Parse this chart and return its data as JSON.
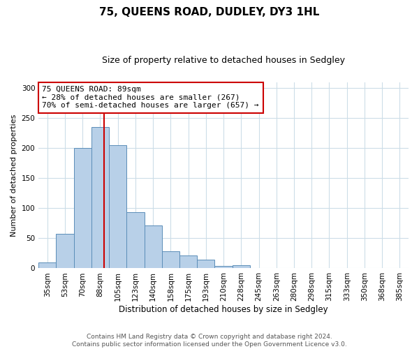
{
  "title": "75, QUEENS ROAD, DUDLEY, DY3 1HL",
  "subtitle": "Size of property relative to detached houses in Sedgley",
  "xlabel": "Distribution of detached houses by size in Sedgley",
  "ylabel": "Number of detached properties",
  "categories": [
    "35sqm",
    "53sqm",
    "70sqm",
    "88sqm",
    "105sqm",
    "123sqm",
    "140sqm",
    "158sqm",
    "175sqm",
    "193sqm",
    "210sqm",
    "228sqm",
    "245sqm",
    "263sqm",
    "280sqm",
    "298sqm",
    "315sqm",
    "333sqm",
    "350sqm",
    "368sqm",
    "385sqm"
  ],
  "values": [
    10,
    58,
    200,
    235,
    205,
    93,
    71,
    28,
    22,
    15,
    4,
    5,
    0,
    0,
    0,
    1,
    0,
    0,
    0,
    1,
    0
  ],
  "bar_color": "#b8d0e8",
  "bar_edge_color": "#5b8db8",
  "property_line_color": "#cc0000",
  "property_line_x": 3.2,
  "annotation_title": "75 QUEENS ROAD: 89sqm",
  "annotation_line1": "← 28% of detached houses are smaller (267)",
  "annotation_line2": "70% of semi-detached houses are larger (657) →",
  "annotation_box_facecolor": "#ffffff",
  "annotation_box_edgecolor": "#cc0000",
  "ylim": [
    0,
    310
  ],
  "yticks": [
    0,
    50,
    100,
    150,
    200,
    250,
    300
  ],
  "footer1": "Contains HM Land Registry data © Crown copyright and database right 2024.",
  "footer2": "Contains public sector information licensed under the Open Government Licence v3.0.",
  "background_color": "#ffffff",
  "grid_color": "#ccdde8",
  "title_fontsize": 11,
  "subtitle_fontsize": 9,
  "xlabel_fontsize": 8.5,
  "ylabel_fontsize": 8,
  "tick_fontsize": 7.5,
  "footer_fontsize": 6.5,
  "annotation_fontsize": 8
}
